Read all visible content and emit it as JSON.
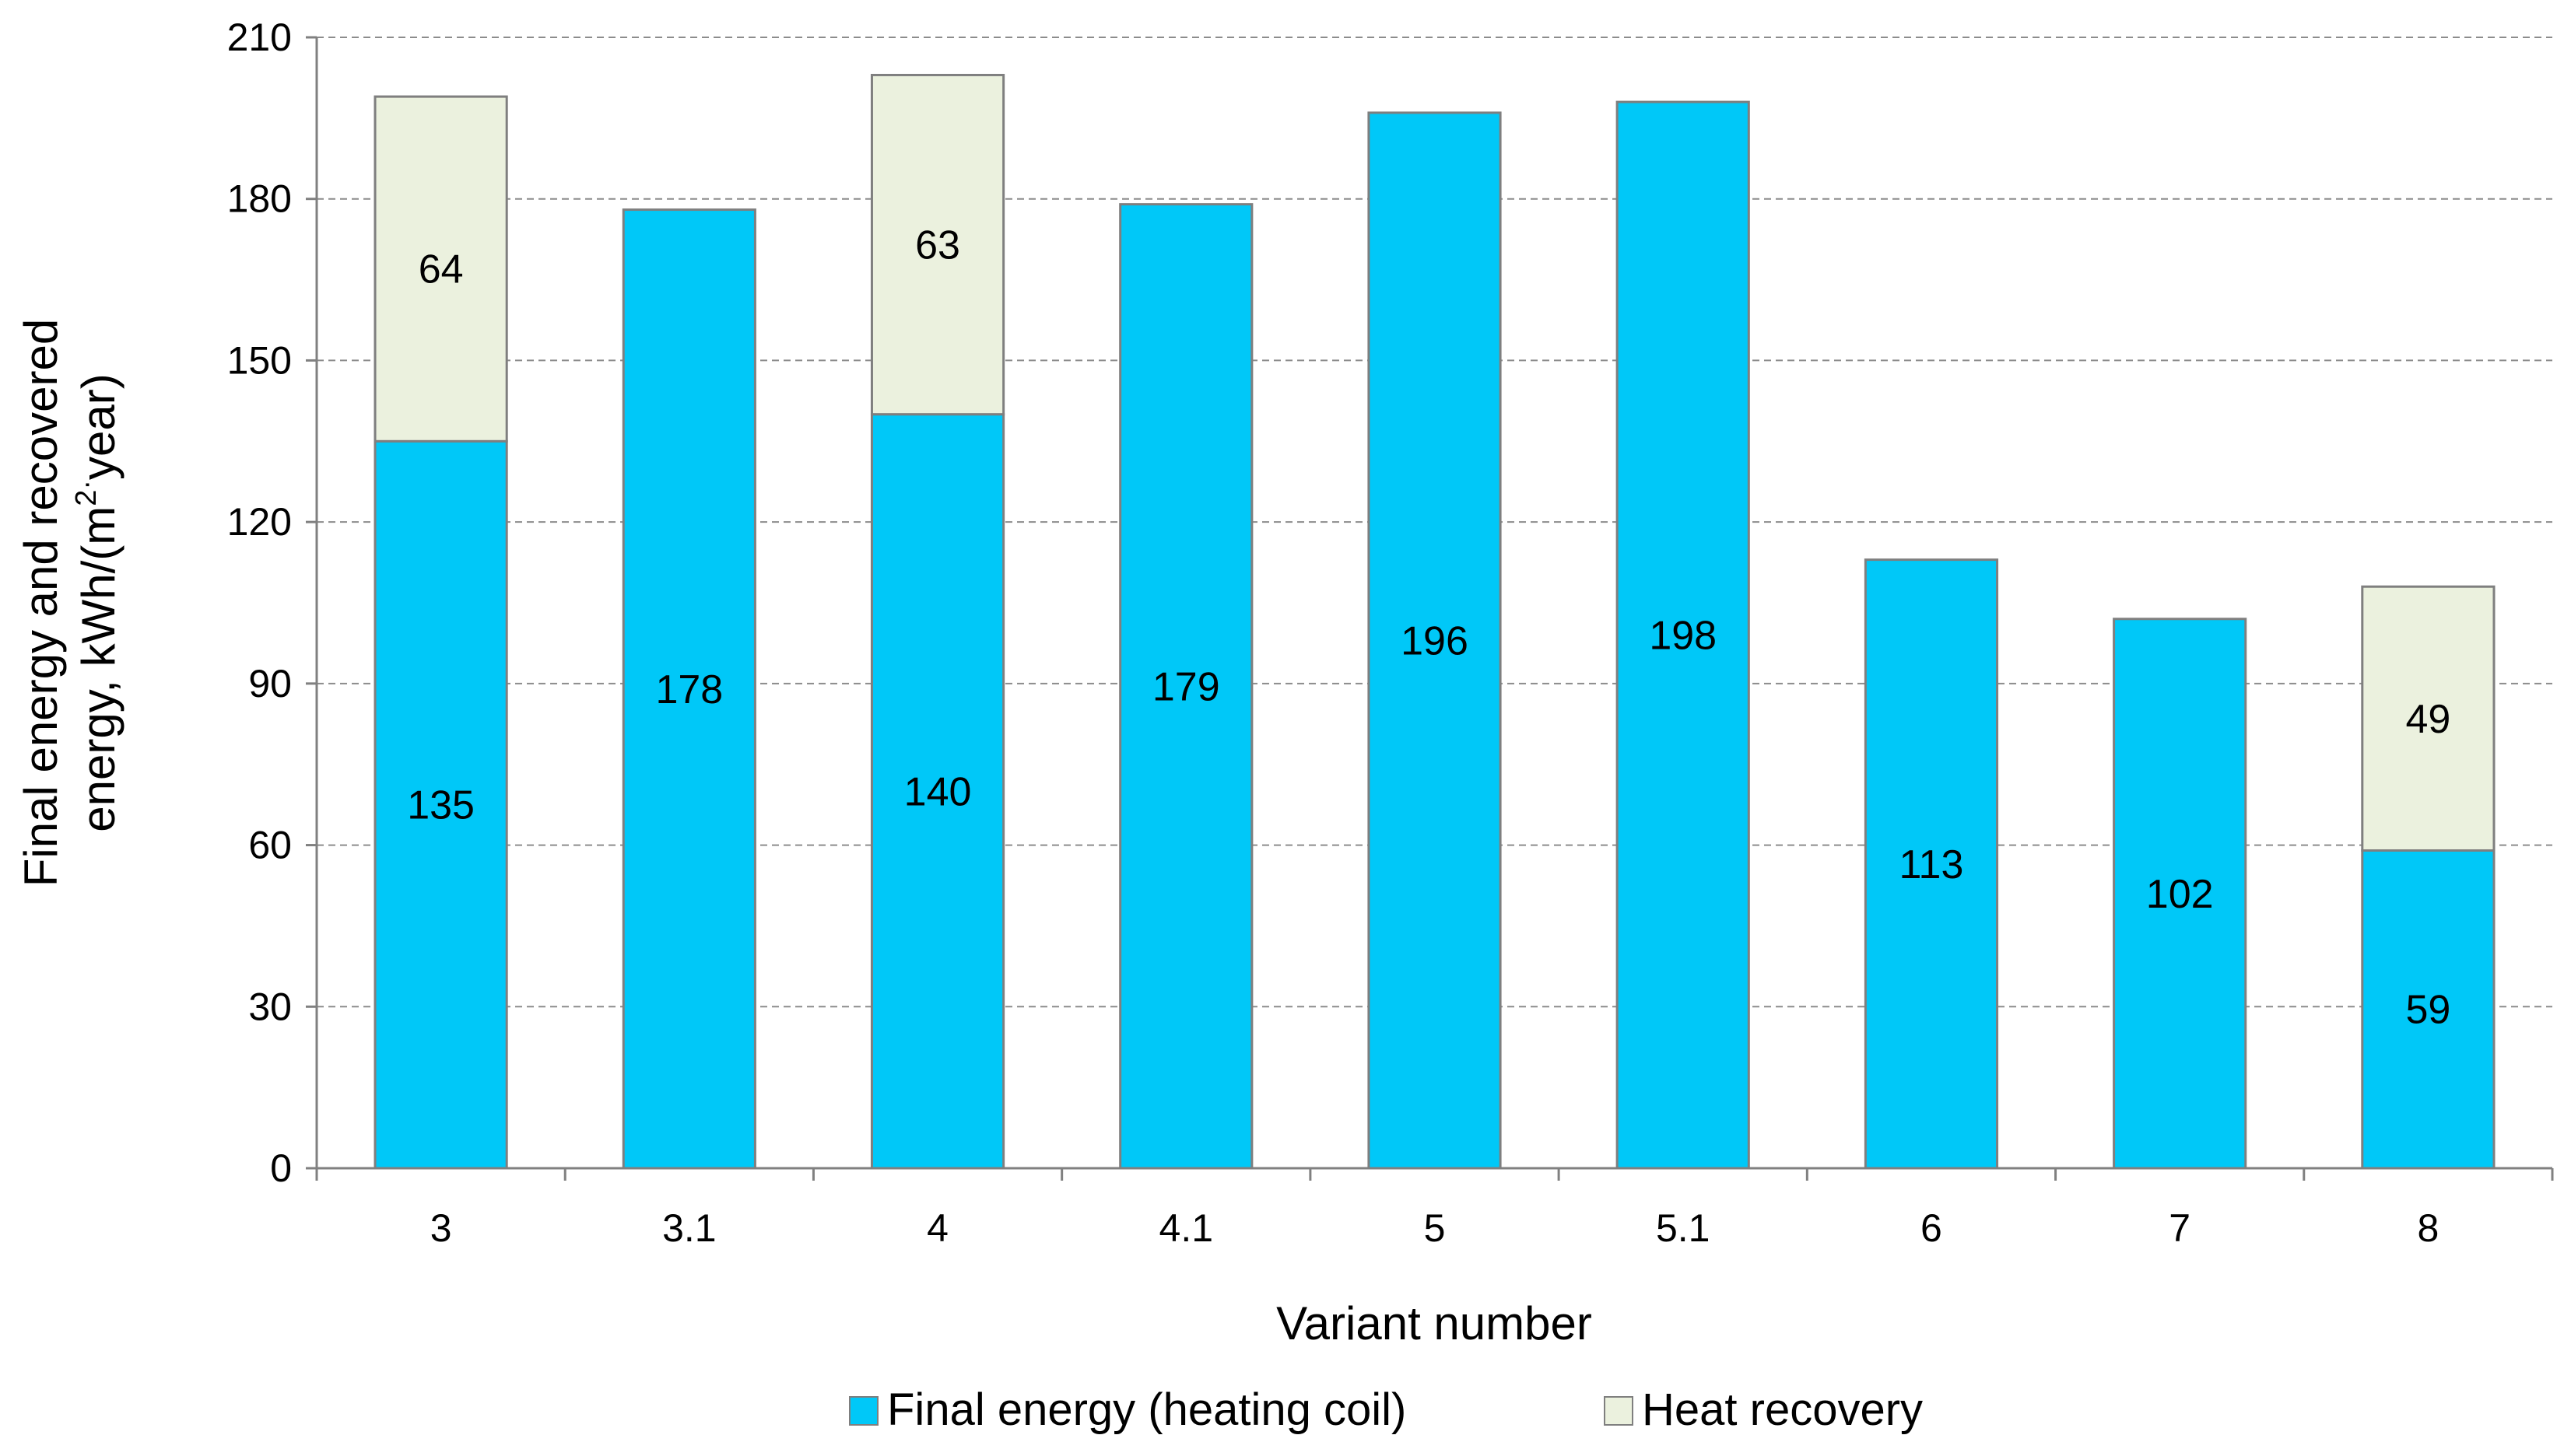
{
  "chart_data": {
    "type": "bar",
    "stacked": true,
    "categories": [
      "3",
      "3.1",
      "4",
      "4.1",
      "5",
      "5.1",
      "6",
      "7",
      "8"
    ],
    "series": [
      {
        "name": "Final energy (heating coil)",
        "color": "#00c8f8",
        "values": [
          135,
          178,
          140,
          179,
          196,
          198,
          113,
          102,
          59
        ],
        "labels": [
          "135",
          "178",
          "140",
          "179",
          "196",
          "198",
          "113",
          "102",
          "59"
        ]
      },
      {
        "name": "Heat recovery",
        "color": "#ebf1de",
        "values": [
          64,
          0,
          63,
          0,
          0,
          0,
          0,
          0,
          49
        ],
        "labels": [
          "64",
          "",
          "63",
          "",
          "",
          "",
          "",
          "",
          "49"
        ]
      }
    ],
    "xlabel": "Variant number",
    "ylabel_line1": "Final energy and recovered",
    "ylabel_line2_prefix": "energy,  kWh/(m",
    "ylabel_sup": "2",
    "ylabel_dot": "·",
    "ylabel_line2_suffix": "year)",
    "ylim": [
      0,
      210
    ],
    "yticks": [
      "0",
      "30",
      "60",
      "90",
      "120",
      "150",
      "180",
      "210"
    ],
    "grid": true,
    "legend_position": "bottom-center"
  }
}
